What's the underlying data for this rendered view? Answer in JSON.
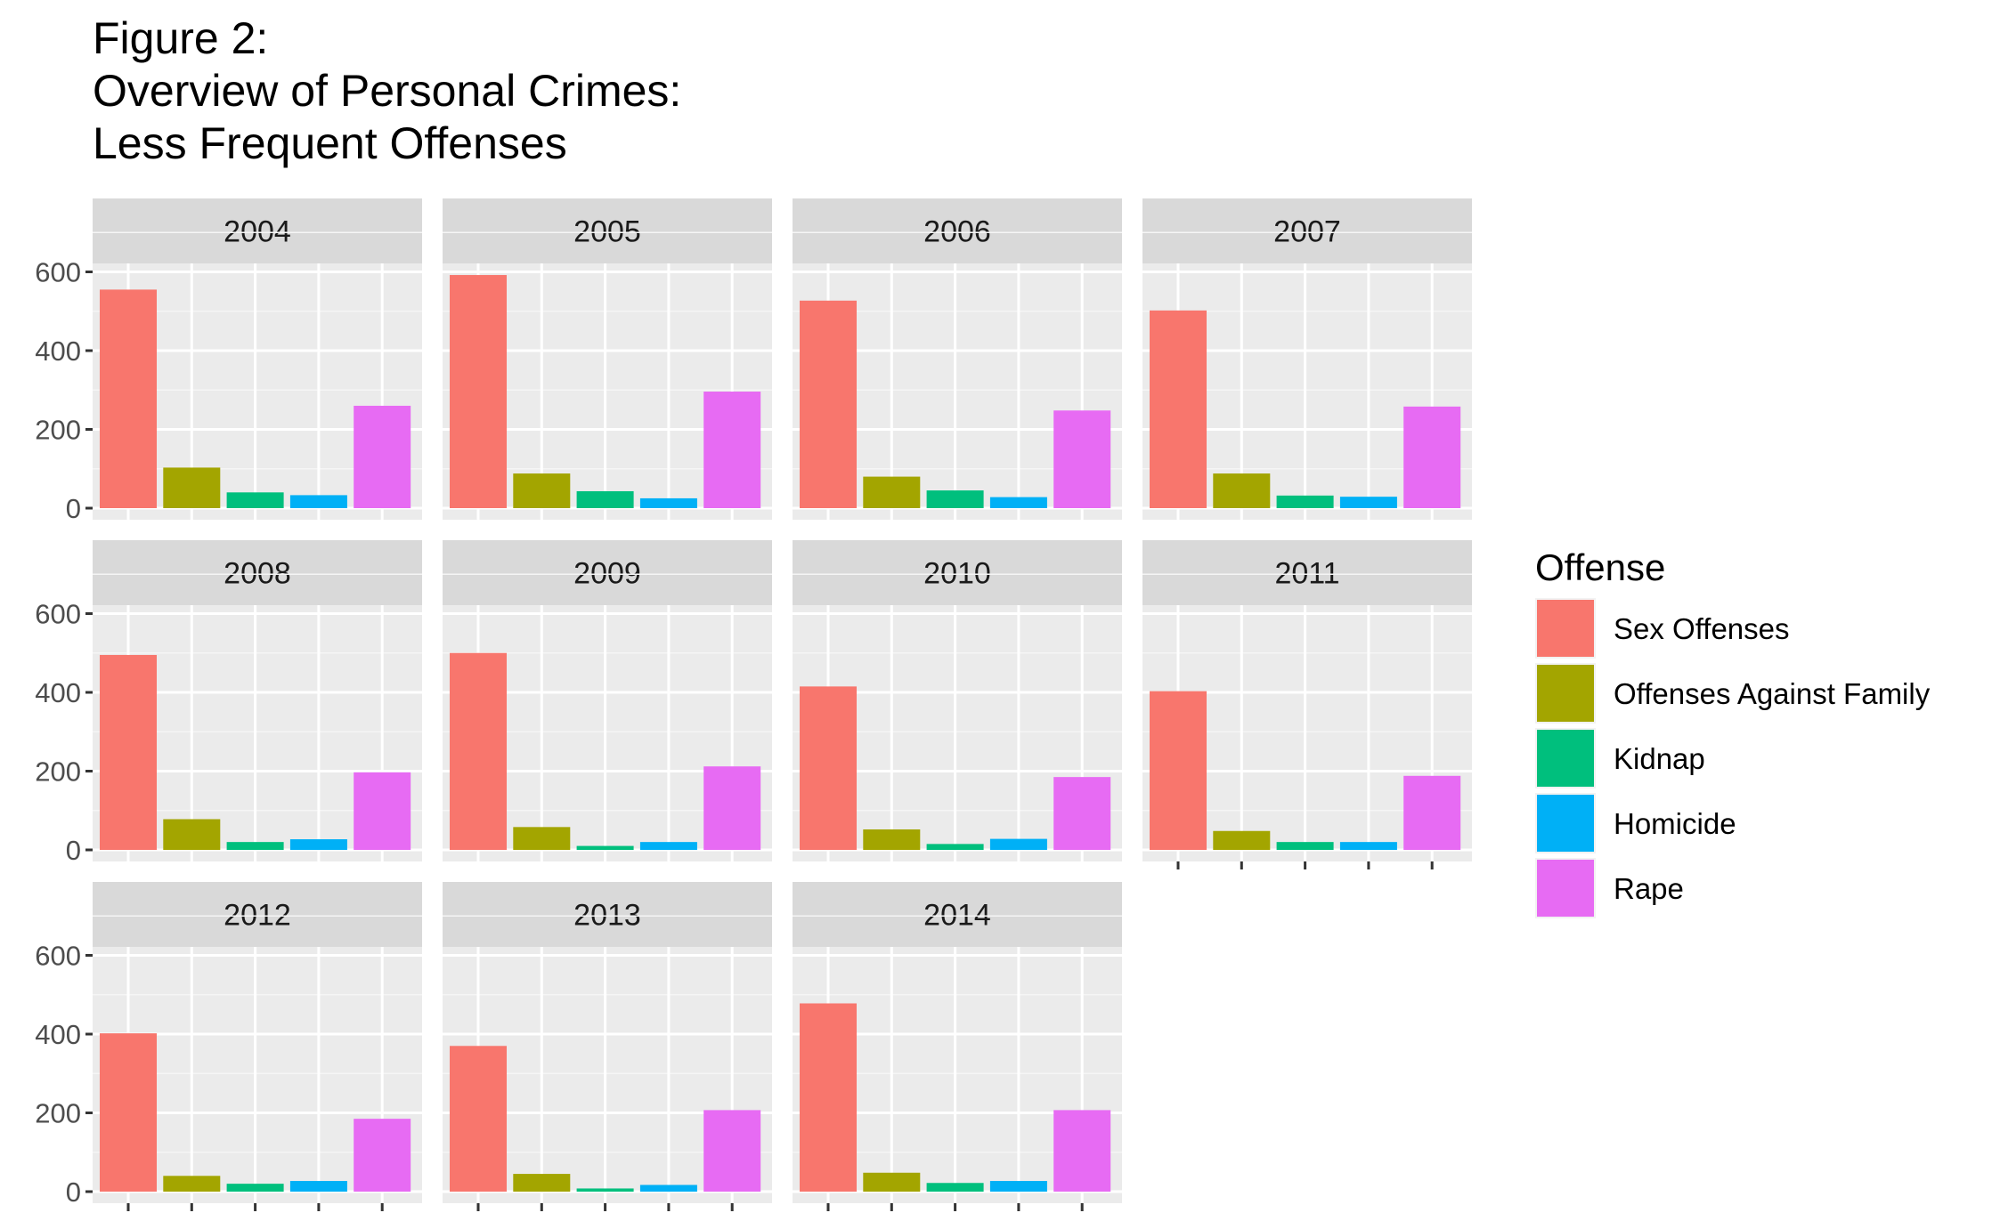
{
  "chart_data": {
    "type": "bar",
    "title_lines": [
      "Figure 2:",
      "Overview of Personal Crimes:",
      "Less Frequent Offenses"
    ],
    "xlabel": "",
    "ylabel": "",
    "ylim": [
      0,
      700
    ],
    "yticks": [
      0,
      200,
      400,
      600
    ],
    "grid": true,
    "facet_by": "year",
    "facet_layout": "4 columns, 3 rows",
    "categories": [
      "Sex Offenses",
      "Offenses Against Family",
      "Kidnap",
      "Homicide",
      "Rape"
    ],
    "colors": [
      "#F8766D",
      "#A3A500",
      "#00BF7D",
      "#00B0F6",
      "#E76BF3"
    ],
    "legend": {
      "title": "Offense",
      "position": "right",
      "items": [
        "Sex Offenses",
        "Offenses Against Family",
        "Kidnap",
        "Homicide",
        "Rape"
      ]
    },
    "panels": [
      {
        "label": "2004",
        "values": [
          555,
          103,
          40,
          33,
          260
        ]
      },
      {
        "label": "2005",
        "values": [
          592,
          88,
          43,
          25,
          296
        ]
      },
      {
        "label": "2006",
        "values": [
          527,
          80,
          45,
          28,
          248
        ]
      },
      {
        "label": "2007",
        "values": [
          502,
          88,
          32,
          29,
          258
        ]
      },
      {
        "label": "2008",
        "values": [
          495,
          78,
          20,
          27,
          197
        ]
      },
      {
        "label": "2009",
        "values": [
          500,
          58,
          10,
          20,
          212
        ]
      },
      {
        "label": "2010",
        "values": [
          415,
          52,
          15,
          28,
          185
        ]
      },
      {
        "label": "2011",
        "values": [
          403,
          48,
          20,
          20,
          188
        ]
      },
      {
        "label": "2012",
        "values": [
          402,
          40,
          20,
          27,
          185
        ]
      },
      {
        "label": "2013",
        "values": [
          370,
          45,
          8,
          17,
          207
        ]
      },
      {
        "label": "2014",
        "values": [
          478,
          48,
          22,
          27,
          207
        ]
      }
    ]
  }
}
